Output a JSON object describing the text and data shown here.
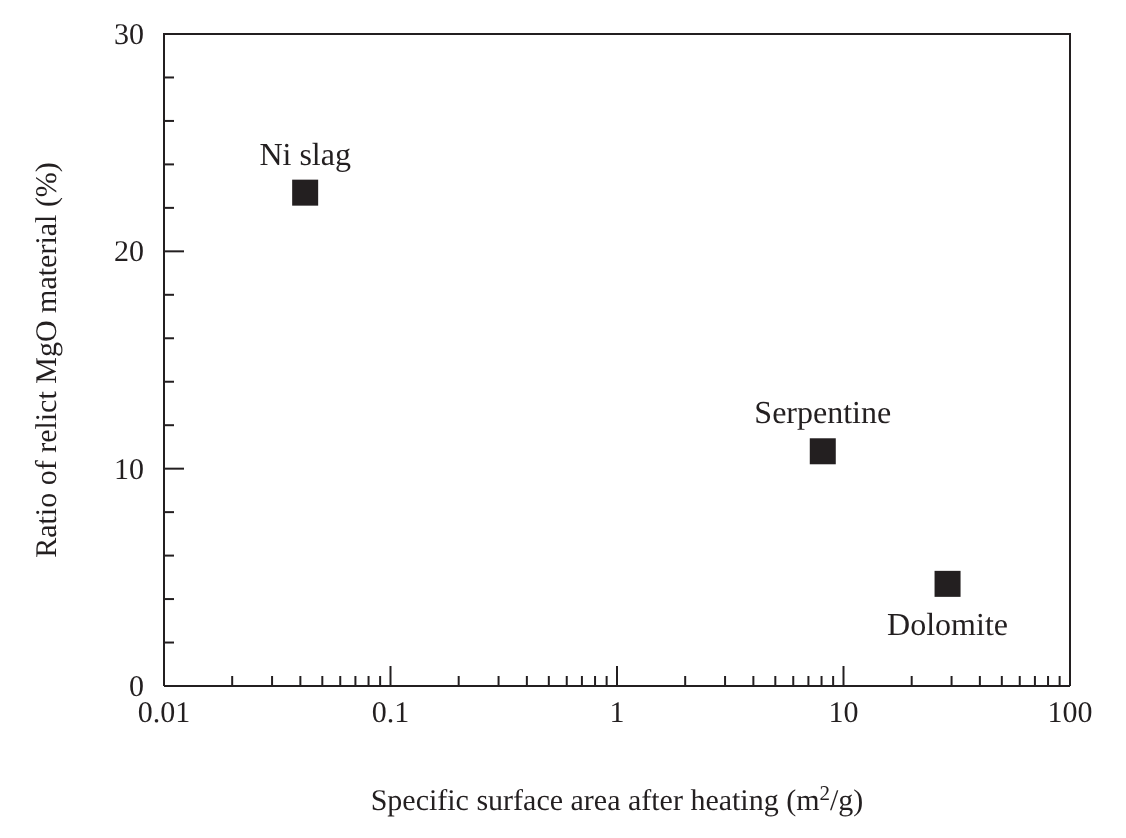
{
  "chart_data": {
    "type": "scatter",
    "xlabel": "Specific surface area after heating (m$^{2}$/g)",
    "ylabel": "Ratio of relict MgO material (%)",
    "x": [
      0.042,
      8.1,
      28.8
    ],
    "series": [
      {
        "color": "#231f20",
        "values": [
          22.7,
          10.8,
          4.7
        ]
      }
    ],
    "marker": "square",
    "log": "x",
    "grid": false,
    "legend": false,
    "xlim": [
      0.01,
      100
    ],
    "ylim": [
      0,
      30
    ],
    "xticks": [
      0.01,
      {
        "value": 0.02,
        "label": null
      },
      {
        "value": 0.03,
        "label": null
      },
      {
        "value": 0.04,
        "label": null
      },
      {
        "value": 0.05,
        "label": null
      },
      {
        "value": 0.06,
        "label": null
      },
      {
        "value": 0.07,
        "label": null
      },
      {
        "value": 0.08,
        "label": null
      },
      {
        "value": 0.09,
        "label": null
      },
      0.1,
      {
        "value": 0.2,
        "label": null
      },
      {
        "value": 0.3,
        "label": null
      },
      {
        "value": 0.4,
        "label": null
      },
      {
        "value": 0.5,
        "label": null
      },
      {
        "value": 0.6,
        "label": null
      },
      {
        "value": 0.7,
        "label": null
      },
      {
        "value": 0.8,
        "label": null
      },
      {
        "value": 0.9,
        "label": null
      },
      1,
      {
        "value": 2,
        "label": null
      },
      {
        "value": 3,
        "label": null
      },
      {
        "value": 4,
        "label": null
      },
      {
        "value": 5,
        "label": null
      },
      {
        "value": 6,
        "label": null
      },
      {
        "value": 7,
        "label": null
      },
      {
        "value": 8,
        "label": null
      },
      {
        "value": 9,
        "label": null
      },
      10,
      {
        "value": 20,
        "label": null
      },
      {
        "value": 30,
        "label": null
      },
      {
        "value": 40,
        "label": null
      },
      {
        "value": 50,
        "label": null
      },
      {
        "value": 60,
        "label": null
      },
      {
        "value": 70,
        "label": null
      },
      {
        "value": 80,
        "label": null
      },
      {
        "value": 90,
        "label": null
      },
      100
    ],
    "yticks": [
      0,
      {
        "value": 2,
        "label": null
      },
      {
        "value": 4,
        "label": null
      },
      {
        "value": 6,
        "label": null
      },
      {
        "value": 8,
        "label": null
      },
      10,
      {
        "value": 12,
        "label": null
      },
      {
        "value": 14,
        "label": null
      },
      {
        "value": 16,
        "label": null
      },
      {
        "value": 18,
        "label": null
      },
      20,
      {
        "value": 22,
        "label": null
      },
      {
        "value": 24,
        "label": null
      },
      {
        "value": 26,
        "label": null
      },
      {
        "value": 28,
        "label": null
      },
      30
    ],
    "annotations": [
      {
        "text": "Ni slag",
        "x": 0.042,
        "y": 22.7
      },
      {
        "text": "Serpentine",
        "x": 8.1,
        "y": 10.8
      },
      {
        "text": "Dolomite",
        "x": 28.8,
        "y": 4.7
      }
    ]
  }
}
